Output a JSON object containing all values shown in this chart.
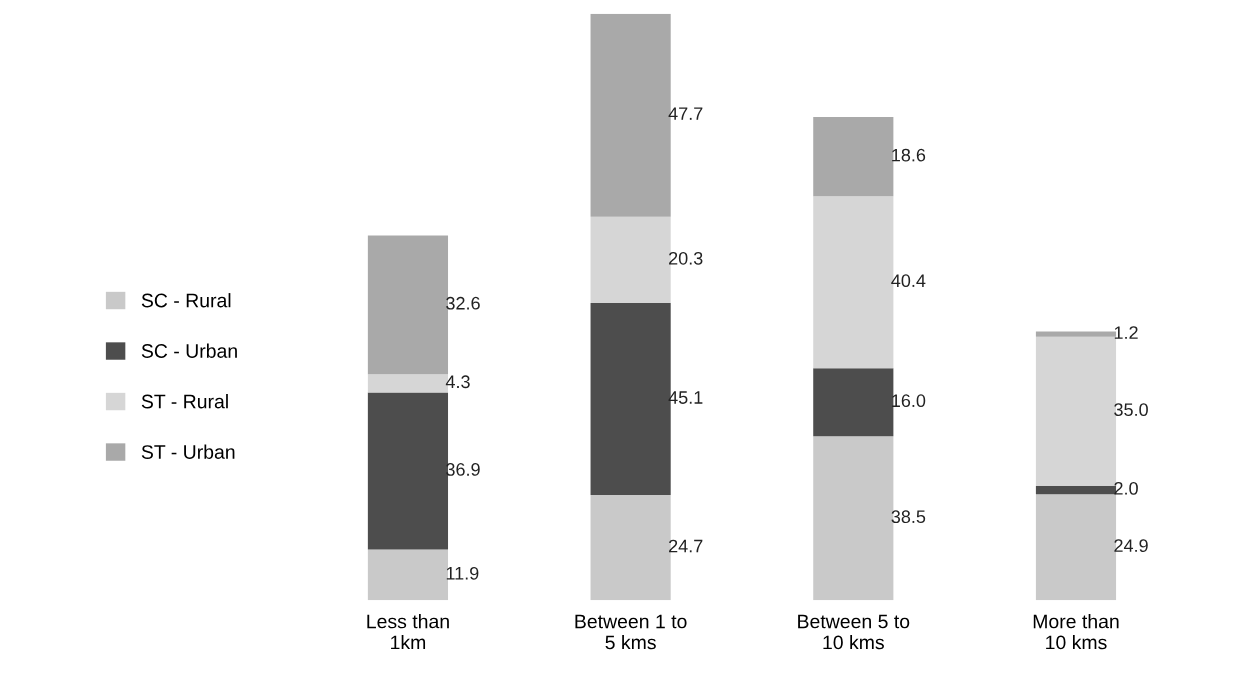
{
  "chart_data": {
    "type": "bar",
    "stacked": true,
    "legend": "left",
    "grid": false,
    "tick_labels": "x",
    "categories": [
      "Less than\n1km",
      "Between 1 to\n5 kms",
      "Between 5 to\n10 kms",
      "More than\n10 kms"
    ],
    "series": [
      {
        "name": "SC - Rural",
        "color": "#c9c9c9",
        "values": [
          11.9,
          24.7,
          38.5,
          24.9
        ],
        "value_labels": [
          "11.9",
          "24.7",
          "38.5",
          "24.9"
        ]
      },
      {
        "name": "SC - Urban",
        "color": "#4d4d4d",
        "values": [
          36.9,
          45.1,
          16,
          2
        ],
        "value_labels": [
          "36.9",
          "45.1",
          "16.0",
          "2.0"
        ]
      },
      {
        "name": "ST - Rural",
        "color": "#d6d6d6",
        "values": [
          4.3,
          20.3,
          40.4,
          35
        ],
        "value_labels": [
          "4.3",
          "20.3",
          "40.4",
          "35.0"
        ]
      },
      {
        "name": "ST - Urban",
        "color": "#a9a9a9",
        "values": [
          32.6,
          47.7,
          18.6,
          1.2
        ],
        "value_labels": [
          "32.6",
          "47.7",
          "18.6",
          "1.2"
        ]
      }
    ]
  }
}
